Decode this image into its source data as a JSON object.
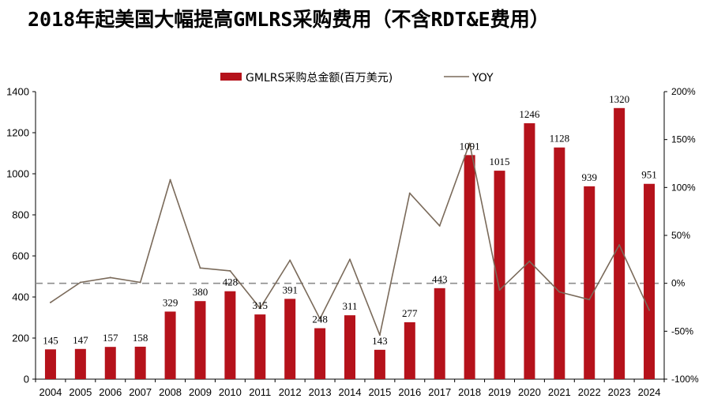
{
  "page": {
    "title": "2018年起美国大幅提高GMLRS采购费用（不含RDT&E费用）"
  },
  "chart_data": {
    "type": "bar+line",
    "title": "2018年起美国大幅提高GMLRS采购费用（不含RDT&E费用）",
    "categories": [
      "2004",
      "2005",
      "2006",
      "2007",
      "2008",
      "2009",
      "2010",
      "2011",
      "2012",
      "2013",
      "2014",
      "2015",
      "2016",
      "2017",
      "2018",
      "2019",
      "2020",
      "2021",
      "2022",
      "2023",
      "2024"
    ],
    "series": [
      {
        "name": "GMLRS采购总金额(百万美元)",
        "type": "bar",
        "axis": "left",
        "color": "#b5121b",
        "values": [
          145,
          147,
          157,
          158,
          329,
          380,
          428,
          315,
          391,
          248,
          311,
          143,
          277,
          443,
          1091,
          1015,
          1246,
          1128,
          939,
          1320,
          951
        ],
        "labels": [
          "145",
          "147",
          "157",
          "158",
          "329",
          "380",
          "428",
          "315",
          "391",
          "248",
          "311",
          "143",
          "277",
          "443",
          "1091",
          "1015",
          "1246",
          "1128",
          "939",
          "1320",
          "951"
        ]
      },
      {
        "name": "YOY",
        "type": "line",
        "axis": "right",
        "color": "#7a6a5a",
        "values": [
          -20,
          1,
          6,
          1,
          108,
          16,
          13,
          -26,
          24,
          -37,
          25,
          -54,
          94,
          60,
          146,
          -7,
          23,
          -9,
          -17,
          40,
          -28
        ]
      }
    ],
    "y_left": {
      "range": [
        0,
        1400
      ],
      "ticks": [
        0,
        200,
        400,
        600,
        800,
        1000,
        1200,
        1400
      ],
      "tick_labels": [
        "0",
        "200",
        "400",
        "600",
        "800",
        "1000",
        "1200",
        "1400"
      ]
    },
    "y_right": {
      "range": [
        -100,
        200
      ],
      "ticks": [
        -100,
        -50,
        0,
        50,
        100,
        150,
        200
      ],
      "tick_labels": [
        "-100%",
        "-50%",
        "0%",
        "50%",
        "100%",
        "150%",
        "200%"
      ],
      "zero_line": "dashed"
    },
    "grid": false,
    "legend_position": "top-center"
  }
}
